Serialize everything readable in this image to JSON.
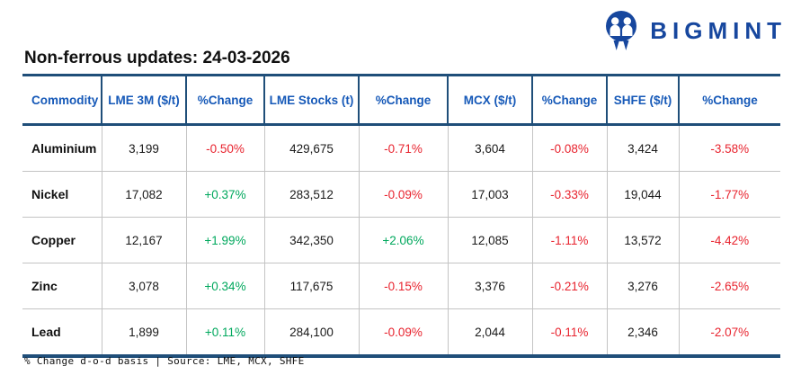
{
  "logo": {
    "brand": "BIGMINT",
    "icon": "bigmint-mascot-icon"
  },
  "colors": {
    "brand_blue": "#17479e",
    "border_navy": "#1f4e79",
    "header_text_blue": "#1659b8",
    "positive_green": "#00a85d",
    "negative_red": "#e8232e",
    "row_divider_gray": "#c4c4c4"
  },
  "chart_data": {
    "type": "table",
    "title": "Non-ferrous updates: 24-03-2026",
    "columns": [
      "Commodity",
      "LME 3M ($/t)",
      "%Change",
      "LME Stocks (t)",
      "%Change",
      "MCX ($/t)",
      "%Change",
      "SHFE ($/t)",
      "%Change"
    ],
    "rows": [
      [
        "Aluminium",
        "3,199",
        "-0.50%",
        "429,675",
        "-0.71%",
        "3,604",
        "-0.08%",
        "3,424",
        "-3.58%"
      ],
      [
        "Nickel",
        "17,082",
        "+0.37%",
        "283,512",
        "-0.09%",
        "17,003",
        "-0.33%",
        "19,044",
        "-1.77%"
      ],
      [
        "Copper",
        "12,167",
        "+1.99%",
        "342,350",
        "+2.06%",
        "12,085",
        "-1.11%",
        "13,572",
        "-4.42%"
      ],
      [
        "Zinc",
        "3,078",
        "+0.34%",
        "117,675",
        "-0.15%",
        "3,376",
        "-0.21%",
        "3,276",
        "-2.65%"
      ],
      [
        "Lead",
        "1,899",
        "+0.11%",
        "284,100",
        "-0.09%",
        "2,044",
        "-0.11%",
        "2,346",
        "-2.07%"
      ]
    ],
    "note": "% Change d-o-d basis | Source: LME, MCX, SHFE",
    "legend_position": "none",
    "grid": "on"
  }
}
